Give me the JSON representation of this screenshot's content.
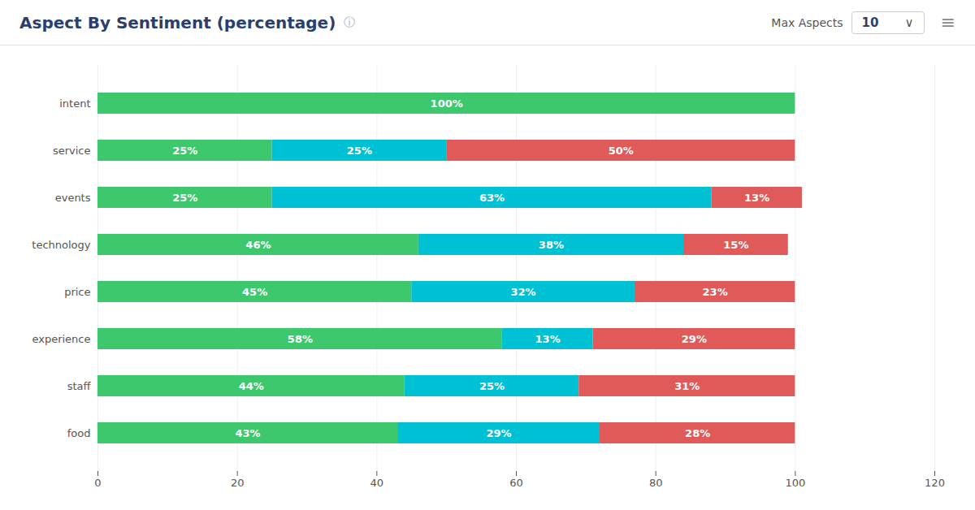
{
  "chart_data": {
    "type": "bar",
    "title": "Aspect By Sentiment (percentage)",
    "annotations": [
      "ⓘ",
      "Max Aspects",
      "10",
      "∨",
      "≡"
    ],
    "orientation": "horizontal",
    "stacked": true,
    "data_labels": true,
    "grid": true,
    "categories": [
      "food",
      "staff",
      "experience",
      "price",
      "technology",
      "events",
      "service",
      "intent"
    ],
    "series": [
      {
        "color": "#3dc86e",
        "values": [
          43,
          44,
          58,
          45,
          46,
          25,
          25,
          100
        ],
        "value_labels": [
          "43%",
          "44%",
          "58%",
          "45%",
          "46%",
          "25%",
          "25%",
          "100%"
        ]
      },
      {
        "color": "#00c0d4",
        "values": [
          29,
          25,
          13,
          32,
          38,
          63,
          25,
          0
        ],
        "value_labels": [
          "29%",
          "25%",
          "13%",
          "32%",
          "38%",
          "63%",
          "25%",
          null
        ]
      },
      {
        "color": "#e05a5a",
        "values": [
          28,
          31,
          29,
          23,
          15,
          13,
          50,
          0
        ],
        "value_labels": [
          "28%",
          "31%",
          "29%",
          "23%",
          "15%",
          "13%",
          "50%",
          null
        ]
      }
    ],
    "xlim": [
      0,
      120
    ],
    "xticks": [
      0,
      20,
      40,
      60,
      80,
      100,
      120
    ]
  }
}
